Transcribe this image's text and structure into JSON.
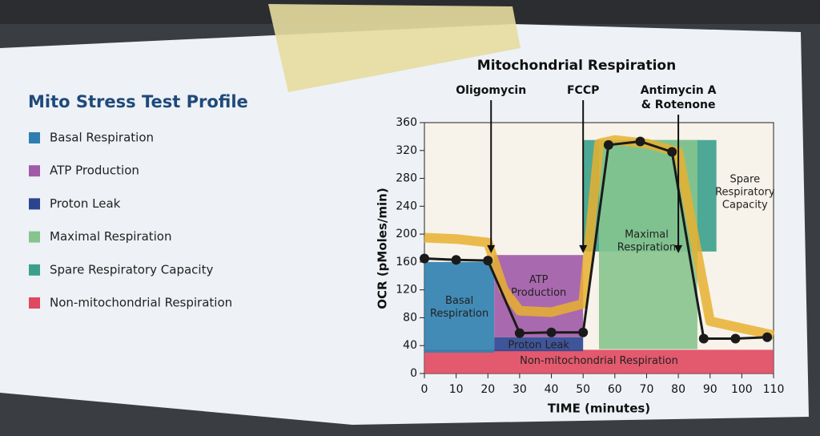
{
  "legend_title": "Mito Stress Test Profile",
  "chart_data": {
    "type": "line",
    "title": "Mitochondrial Respiration",
    "x_label": "TIME (minutes)",
    "y_label": "OCR (pMoles/min)",
    "xlim": [
      0,
      110
    ],
    "xticks": [
      0,
      10,
      20,
      30,
      40,
      50,
      60,
      70,
      80,
      90,
      100,
      110
    ],
    "ylim": [
      0,
      360
    ],
    "yticks": [
      0,
      40,
      80,
      120,
      160,
      200,
      240,
      280,
      320,
      360
    ],
    "regions": [
      {
        "name": "Basal Respiration",
        "color": "#2e7fb0",
        "x": [
          0,
          22
        ],
        "y": [
          30,
          160
        ],
        "label_lines": [
          "Basal",
          "Respiration"
        ]
      },
      {
        "name": "ATP Production",
        "color": "#a05aa8",
        "x": [
          22,
          50
        ],
        "y": [
          52,
          170
        ],
        "label_lines": [
          "ATP",
          "Production"
        ]
      },
      {
        "name": "Proton Leak",
        "color": "#2a4490",
        "x": [
          22,
          50
        ],
        "y": [
          32,
          52
        ],
        "label_lines": [
          "Proton Leak"
        ]
      },
      {
        "name": "Maximal Respiration",
        "color": "#86c48e",
        "x": [
          55,
          86
        ],
        "y": [
          35,
          335
        ],
        "label_lines": [
          "Maximal",
          "Respiration"
        ]
      },
      {
        "name": "Spare Respiratory Capacity",
        "color": "#3aa08c",
        "x": [
          50,
          92
        ],
        "y": [
          175,
          335
        ],
        "label_lines": [
          "Spare",
          "Respiratory",
          "Capacity"
        ]
      },
      {
        "name": "Non-mitochondrial Respiration",
        "color": "#e04860",
        "x": [
          0,
          110
        ],
        "y": [
          0,
          34
        ],
        "label_lines": [
          "Non-mitochondrial Respiration"
        ]
      }
    ],
    "injections": [
      {
        "x": 21,
        "label_lines": [
          "Oligomycin"
        ]
      },
      {
        "x": 50,
        "label_lines": [
          "FCCP"
        ]
      },
      {
        "x": 80,
        "label_lines": [
          "Antimycin A",
          "& Rotenone"
        ]
      }
    ],
    "series": [
      {
        "color": "#e8b030",
        "x": [
          0,
          10,
          20,
          25,
          30,
          40,
          50,
          55,
          60,
          70,
          80,
          90,
          100,
          110
        ],
        "values": [
          195,
          193,
          188,
          120,
          90,
          88,
          100,
          330,
          335,
          330,
          318,
          75,
          65,
          55
        ]
      },
      {
        "color": "#1a1a1a",
        "x": [
          0,
          10,
          20,
          30,
          40,
          50,
          58,
          68,
          78,
          88,
          98,
          108
        ],
        "values": [
          165,
          163,
          162,
          58,
          59,
          59,
          328,
          333,
          318,
          50,
          50,
          52
        ]
      }
    ]
  }
}
